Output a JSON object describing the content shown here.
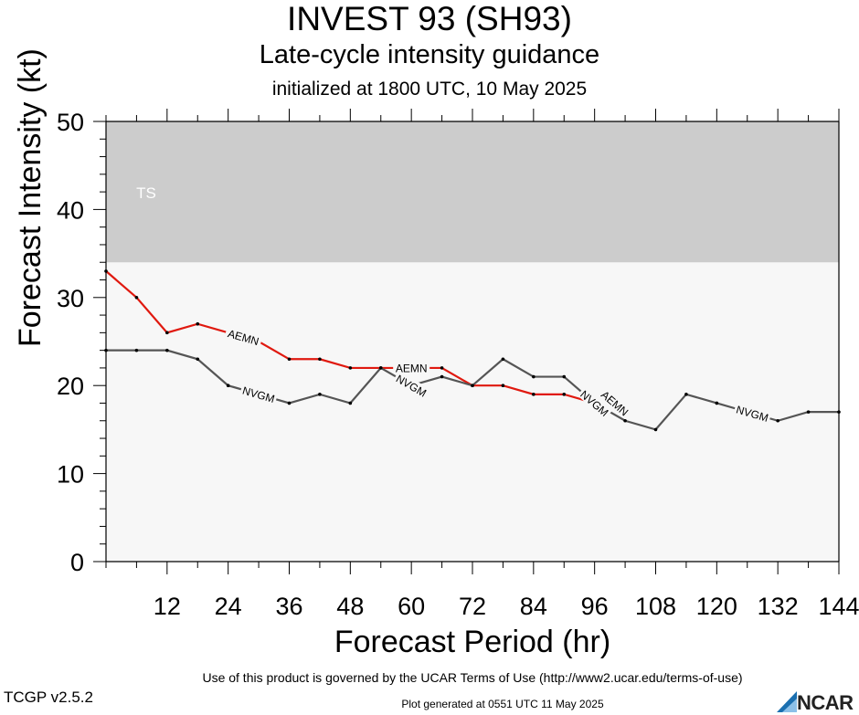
{
  "header": {
    "title": "INVEST 93 (SH93)",
    "subtitle": "Late-cycle intensity guidance",
    "init": "initialized at 1800 UTC, 10 May 2025"
  },
  "footer": {
    "terms": "Use of this product is governed by the UCAR Terms of Use (http://www2.ucar.edu/terms-of-use)",
    "version": "TCGP v2.5.2",
    "generated": "Plot generated at 0551 UTC   11 May 2025",
    "logo_text": "NCAR"
  },
  "chart_data": {
    "type": "line",
    "xlabel": "Forecast Period (hr)",
    "ylabel": "Forecast Intensity (kt)",
    "xlim": [
      0,
      144
    ],
    "ylim": [
      0,
      50
    ],
    "xticks": [
      12,
      24,
      36,
      48,
      60,
      72,
      84,
      96,
      108,
      120,
      132,
      144
    ],
    "yticks": [
      0,
      10,
      20,
      30,
      40,
      50
    ],
    "bands": [
      {
        "label": "TS",
        "from": 34,
        "to": 50,
        "color": "#cccccc"
      }
    ],
    "background_color": "#f7f7f7",
    "series": [
      {
        "name": "AEMN",
        "color": "#e0190f",
        "x": [
          0,
          6,
          12,
          18,
          24,
          30,
          36,
          42,
          48,
          54,
          60,
          66,
          72,
          78,
          84,
          90,
          96
        ],
        "y": [
          33,
          30,
          26,
          27,
          26,
          25,
          23,
          23,
          22,
          22,
          22,
          22,
          20,
          20,
          19,
          19,
          18
        ],
        "labels_at": [
          27,
          60,
          100
        ]
      },
      {
        "name": "NVGM",
        "color": "#555555",
        "x": [
          0,
          6,
          12,
          18,
          24,
          30,
          36,
          42,
          48,
          54,
          60,
          66,
          72,
          78,
          84,
          90,
          96,
          102,
          108,
          114,
          120,
          126,
          132,
          138,
          144
        ],
        "y": [
          24,
          24,
          24,
          23,
          20,
          19,
          18,
          19,
          18,
          22,
          20,
          21,
          20,
          23,
          21,
          21,
          18,
          16,
          15,
          19,
          18,
          17,
          16,
          17,
          17
        ],
        "labels_at": [
          30,
          60,
          96,
          127
        ]
      }
    ]
  }
}
